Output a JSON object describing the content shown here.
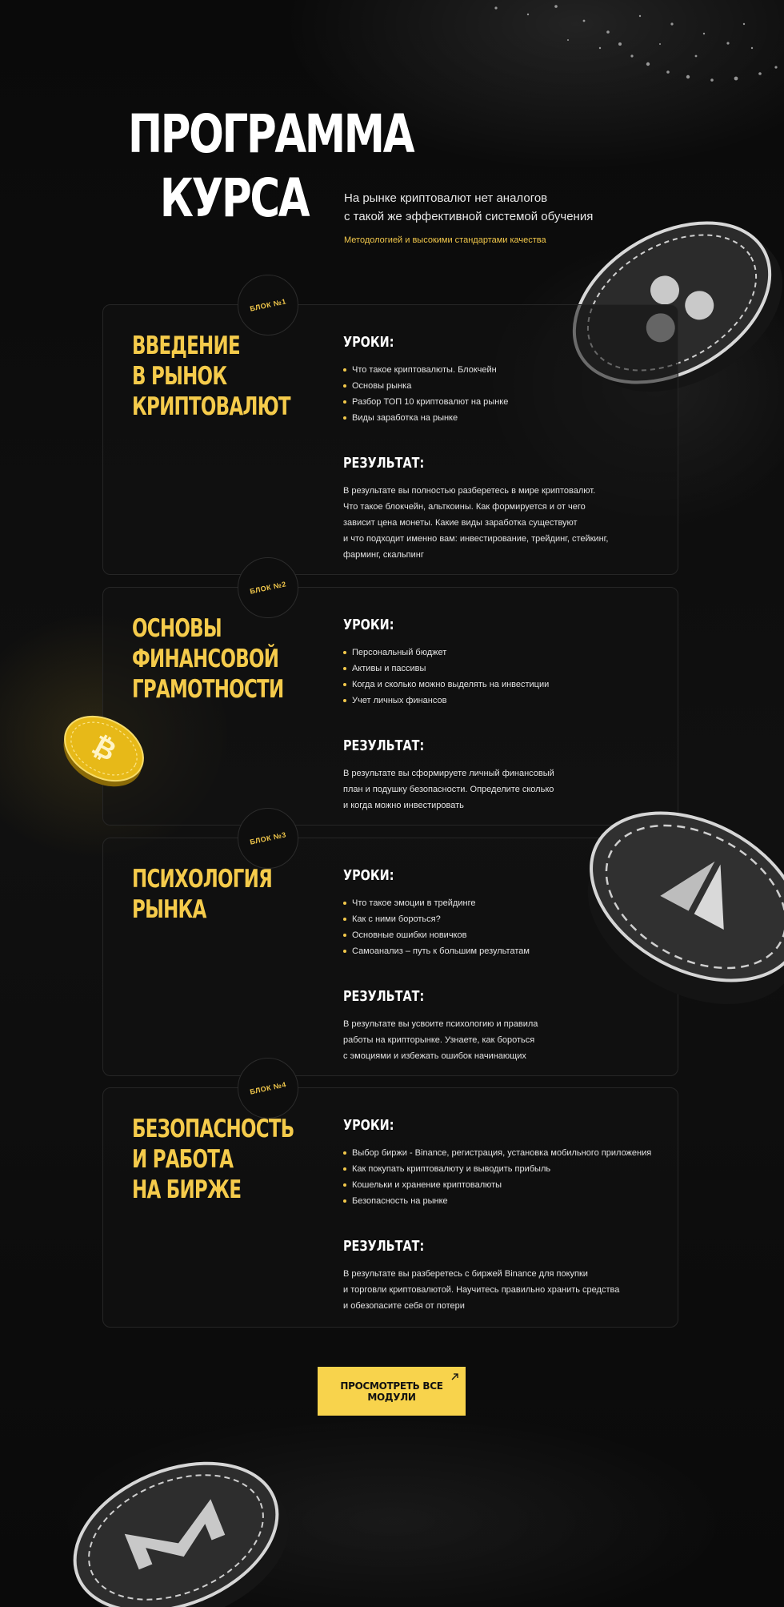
{
  "header": {
    "title_lines": [
      "ПРОГРАММА",
      "КУРСА"
    ],
    "subtitle_lines": [
      "На рынке криптовалют нет аналогов",
      "с такой же эффективной системой обучения"
    ],
    "accent": "Методологией и высокими стандартами качества"
  },
  "labels": {
    "lessons_heading": "УРОКИ:",
    "result_heading": "РЕЗУЛЬТАТ:"
  },
  "blocks": [
    {
      "badge": "БЛОК №1",
      "title_lines": [
        "ВВЕДЕНИЕ",
        "В РЫНОК",
        "КРИПТОВАЛЮТ"
      ],
      "lessons": [
        "Что такое криптовалюты. Блокчейн",
        "Основы рынка",
        "Разбор ТОП 10 криптовалют на рынке",
        "Виды заработка на рынке"
      ],
      "result_lines": [
        "В результате вы полностью разберетесь в мире криптовалют.",
        "Что такое блокчейн, альткоины. Как формируется и от чего",
        "зависит цена монеты. Какие виды заработка существуют",
        "и что подходит именно вам: инвестирование, трейдинг, стейкинг,",
        "фарминг, скальпинг"
      ]
    },
    {
      "badge": "БЛОК №2",
      "title_lines": [
        "ОСНОВЫ",
        "ФИНАНСОВОЙ",
        "ГРАМОТНОСТИ"
      ],
      "lessons": [
        "Персональный бюджет",
        "Активы и пассивы",
        "Когда и сколько можно выделять на инвестиции",
        "Учет личных финансов"
      ],
      "result_lines": [
        "В результате вы сформируете личный финансовый",
        "план и подушку безопасности. Определите сколько",
        "и когда можно инвестировать"
      ]
    },
    {
      "badge": "БЛОК №3",
      "title_lines": [
        "ПСИХОЛОГИЯ",
        "РЫНКА"
      ],
      "lessons": [
        "Что такое эмоции в трейдинге",
        "Как с ними бороться?",
        "Основные ошибки новичков",
        "Самоанализ – путь к большим результатам"
      ],
      "result_lines": [
        "В результате вы усвоите психологию и правила",
        "работы на крипторынке. Узнаете, как бороться",
        "с эмоциями и избежать ошибок начинающих"
      ]
    },
    {
      "badge": "БЛОК №4",
      "title_lines": [
        "БЕЗОПАСНОСТЬ",
        "И РАБОТА",
        "НА БИРЖЕ"
      ],
      "lessons": [
        "Выбор биржи - Binance, регистрация, установка мобильного приложения",
        "Как покупать криптовалюту и выводить прибыль",
        "Кошельки и хранение криптовалюты",
        "Безопасность на рынке"
      ],
      "result_lines": [
        "В результате вы разберетесь с биржей Binance для покупки",
        "и торговли криптовалютой. Научитесь правильно хранить средства",
        "и обезопасите себя от потери"
      ]
    }
  ],
  "cta": {
    "label": "ПРОСМОТРЕТЬ ВСЕ МОДУЛИ"
  },
  "colors": {
    "accent": "#f5cb4b",
    "background": "#0b0b0b",
    "button": "#f8d34c"
  },
  "icons": [
    "ripple-coin-icon",
    "bitcoin-coin-icon",
    "crypto-coin-icon",
    "monero-coin-icon",
    "arrow-up-right-icon"
  ]
}
